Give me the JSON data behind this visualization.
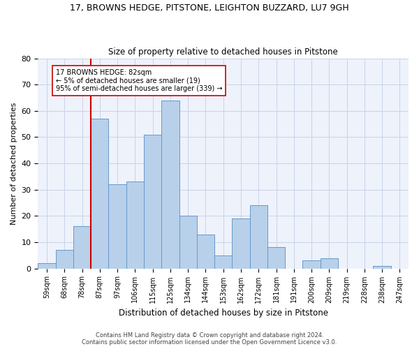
{
  "title_line1": "17, BROWNS HEDGE, PITSTONE, LEIGHTON BUZZARD, LU7 9GH",
  "title_line2": "Size of property relative to detached houses in Pitstone",
  "xlabel": "Distribution of detached houses by size in Pitstone",
  "ylabel": "Number of detached properties",
  "bar_labels": [
    "59sqm",
    "68sqm",
    "78sqm",
    "87sqm",
    "97sqm",
    "106sqm",
    "115sqm",
    "125sqm",
    "134sqm",
    "144sqm",
    "153sqm",
    "162sqm",
    "172sqm",
    "181sqm",
    "191sqm",
    "200sqm",
    "209sqm",
    "219sqm",
    "228sqm",
    "238sqm",
    "247sqm"
  ],
  "bar_values": [
    2,
    7,
    16,
    57,
    32,
    33,
    51,
    64,
    20,
    13,
    5,
    19,
    24,
    8,
    0,
    3,
    4,
    0,
    0,
    1,
    0
  ],
  "bar_color": "#b8d0ea",
  "bar_edge_color": "#6699cc",
  "vline_x": 2.5,
  "vline_color": "#cc0000",
  "annotation_text": "17 BROWNS HEDGE: 82sqm\n← 5% of detached houses are smaller (19)\n95% of semi-detached houses are larger (339) →",
  "annotation_box_color": "white",
  "annotation_box_edge": "#cc0000",
  "ylim": [
    0,
    80
  ],
  "yticks": [
    0,
    10,
    20,
    30,
    40,
    50,
    60,
    70,
    80
  ],
  "footer_line1": "Contains HM Land Registry data © Crown copyright and database right 2024.",
  "footer_line2": "Contains public sector information licensed under the Open Government Licence v3.0.",
  "bg_color": "#eef2fb",
  "grid_color": "#c8d4e8"
}
